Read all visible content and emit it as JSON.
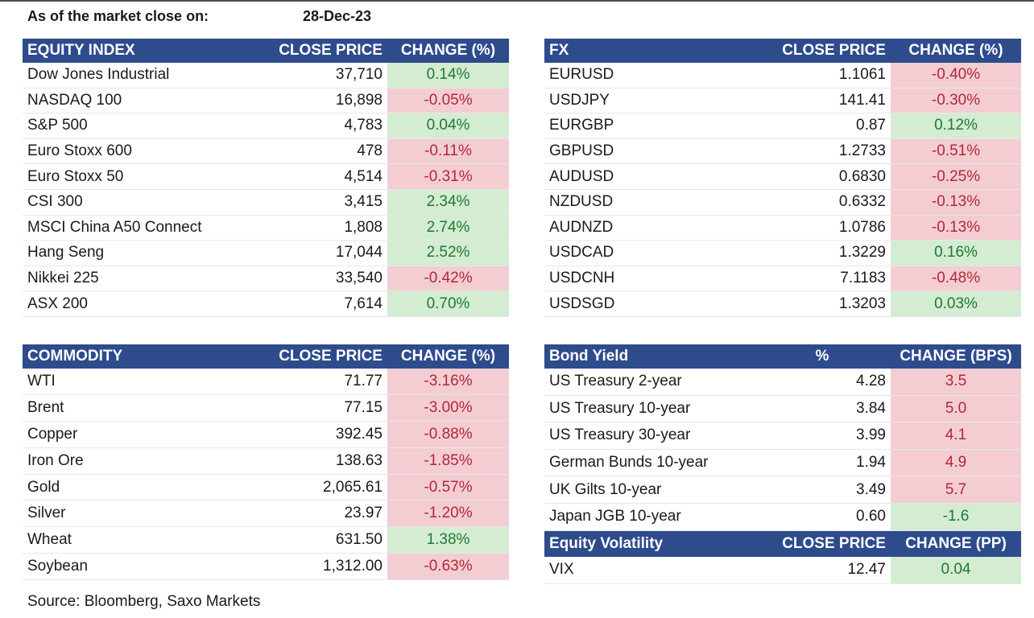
{
  "header": {
    "as_of_label": "As of the market close on:",
    "as_of_date": "28-Dec-23"
  },
  "equity": {
    "headers": [
      "EQUITY INDEX",
      "CLOSE PRICE",
      "CHANGE (%)"
    ],
    "rows": [
      {
        "name": "Dow Jones Industrial",
        "close": "37,710",
        "change": "0.14%",
        "dir": "pos"
      },
      {
        "name": "NASDAQ 100",
        "close": "16,898",
        "change": "-0.05%",
        "dir": "neg"
      },
      {
        "name": "S&P 500",
        "close": "4,783",
        "change": "0.04%",
        "dir": "pos"
      },
      {
        "name": "Euro Stoxx 600",
        "close": "478",
        "change": "-0.11%",
        "dir": "neg"
      },
      {
        "name": "Euro Stoxx 50",
        "close": "4,514",
        "change": "-0.31%",
        "dir": "neg"
      },
      {
        "name": "CSI 300",
        "close": "3,415",
        "change": "2.34%",
        "dir": "pos"
      },
      {
        "name": "MSCI China A50 Connect",
        "close": "1,808",
        "change": "2.74%",
        "dir": "pos"
      },
      {
        "name": "Hang Seng",
        "close": "17,044",
        "change": "2.52%",
        "dir": "pos"
      },
      {
        "name": "Nikkei 225",
        "close": "33,540",
        "change": "-0.42%",
        "dir": "neg"
      },
      {
        "name": "ASX 200",
        "close": "7,614",
        "change": "0.70%",
        "dir": "pos"
      }
    ]
  },
  "fx": {
    "headers": [
      "FX",
      "CLOSE PRICE",
      "CHANGE (%)"
    ],
    "rows": [
      {
        "name": "EURUSD",
        "close": "1.1061",
        "change": "-0.40%",
        "dir": "neg"
      },
      {
        "name": "USDJPY",
        "close": "141.41",
        "change": "-0.30%",
        "dir": "neg"
      },
      {
        "name": "EURGBP",
        "close": "0.87",
        "change": "0.12%",
        "dir": "pos"
      },
      {
        "name": "GBPUSD",
        "close": "1.2733",
        "change": "-0.51%",
        "dir": "neg"
      },
      {
        "name": "AUDUSD",
        "close": "0.6830",
        "change": "-0.25%",
        "dir": "neg"
      },
      {
        "name": "NZDUSD",
        "close": "0.6332",
        "change": "-0.13%",
        "dir": "neg"
      },
      {
        "name": "AUDNZD",
        "close": "1.0786",
        "change": "-0.13%",
        "dir": "neg"
      },
      {
        "name": "USDCAD",
        "close": "1.3229",
        "change": "0.16%",
        "dir": "pos"
      },
      {
        "name": "USDCNH",
        "close": "7.1183",
        "change": "-0.48%",
        "dir": "neg"
      },
      {
        "name": "USDSGD",
        "close": "1.3203",
        "change": "0.03%",
        "dir": "pos"
      }
    ]
  },
  "commodity": {
    "headers": [
      "COMMODITY",
      "CLOSE PRICE",
      "CHANGE (%)"
    ],
    "rows": [
      {
        "name": "WTI",
        "close": "71.77",
        "change": "-3.16%",
        "dir": "neg"
      },
      {
        "name": "Brent",
        "close": "77.15",
        "change": "-3.00%",
        "dir": "neg"
      },
      {
        "name": "Copper",
        "close": "392.45",
        "change": "-0.88%",
        "dir": "neg"
      },
      {
        "name": "Iron Ore",
        "close": "138.63",
        "change": "-1.85%",
        "dir": "neg"
      },
      {
        "name": "Gold",
        "close": "2,065.61",
        "change": "-0.57%",
        "dir": "neg"
      },
      {
        "name": "Silver",
        "close": "23.97",
        "change": "-1.20%",
        "dir": "neg"
      },
      {
        "name": "Wheat",
        "close": "631.50",
        "change": "1.38%",
        "dir": "pos"
      },
      {
        "name": "Soybean",
        "close": "1,312.00",
        "change": "-0.63%",
        "dir": "neg"
      }
    ]
  },
  "bond": {
    "headers": [
      "Bond Yield",
      "%",
      "CHANGE (BPS)"
    ],
    "rows": [
      {
        "name": "US Treasury 2-year",
        "close": "4.28",
        "change": "3.5",
        "dir": "neg"
      },
      {
        "name": "US Treasury 10-year",
        "close": "3.84",
        "change": "5.0",
        "dir": "neg"
      },
      {
        "name": "US Treasury 30-year",
        "close": "3.99",
        "change": "4.1",
        "dir": "neg"
      },
      {
        "name": "German Bunds 10-year",
        "close": "1.94",
        "change": "4.9",
        "dir": "neg"
      },
      {
        "name": "UK Gilts 10-year",
        "close": "3.49",
        "change": "5.7",
        "dir": "neg"
      },
      {
        "name": "Japan JGB 10-year",
        "close": "0.60",
        "change": "-1.6",
        "dir": "pos"
      }
    ]
  },
  "volatility": {
    "headers": [
      "Equity Volatility",
      "CLOSE PRICE",
      "CHANGE (PP)"
    ],
    "rows": [
      {
        "name": "VIX",
        "close": "12.47",
        "change": "0.04",
        "dir": "pos"
      }
    ]
  },
  "footer": {
    "source": "Source: Bloomberg, Saxo Markets"
  },
  "colors": {
    "header_bg": "#2e4b8c",
    "positive_bg": "#d4ecd1",
    "negative_bg": "#f3cdd2",
    "positive_text": "#1f7a34",
    "negative_text": "#b1283a"
  }
}
